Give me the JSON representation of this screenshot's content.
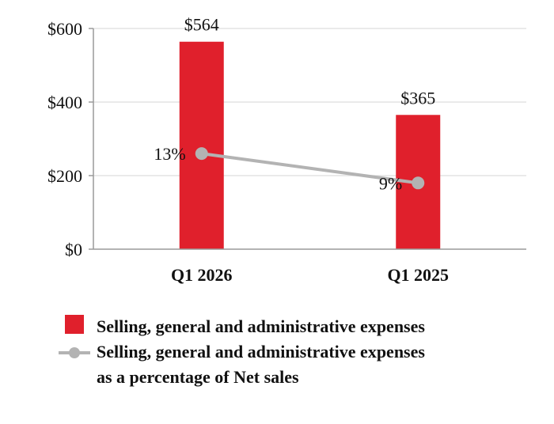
{
  "chart_data": {
    "type": "bar",
    "categories": [
      "Q1 2026",
      "Q1 2025"
    ],
    "ylim": [
      0,
      600
    ],
    "yticks": [
      0,
      200,
      400,
      600
    ],
    "ytick_labels": [
      "$0",
      "$200",
      "$400",
      "$600"
    ],
    "grid": true,
    "series": [
      {
        "name": "Selling, general and administrative expenses",
        "type": "bar",
        "values": [
          564,
          365
        ],
        "labels": [
          "$564",
          "$365"
        ],
        "color": "#e0202c"
      },
      {
        "name": "Selling, general and administrative expenses as a percentage of Net sales",
        "legend_lines": [
          "Selling, general and administrative expenses",
          "as a percentage of Net sales"
        ],
        "type": "line",
        "values": [
          13,
          9
        ],
        "labels": [
          "13%",
          "9%"
        ],
        "color": "#b3b3b3"
      }
    ],
    "legend_position": "bottom-left"
  }
}
